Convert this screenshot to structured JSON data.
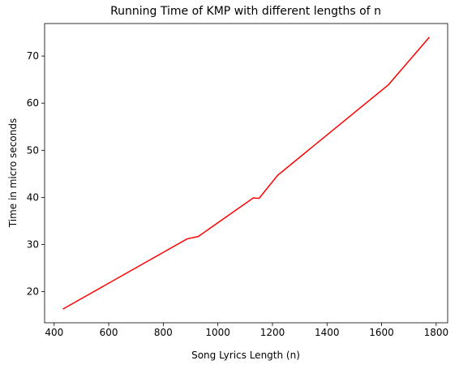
{
  "chart_data": {
    "type": "line",
    "title": "Running Time of KMP with different lengths of n",
    "xlabel": "Song Lyrics Length (n)",
    "ylabel": "Time in micro seconds",
    "x": [
      432,
      887,
      928,
      1130,
      1151,
      1219,
      1625,
      1775
    ],
    "series": [
      {
        "name": "KMP",
        "color": "#ff0000",
        "values": [
          16.3,
          31.2,
          31.7,
          39.9,
          39.8,
          44.7,
          63.9,
          74.0
        ]
      }
    ],
    "xlim": [
      365,
      1842
    ],
    "xticks": [
      400,
      600,
      800,
      1000,
      1200,
      1400,
      1600,
      1800
    ],
    "ylim": [
      13.4,
      76.9
    ],
    "yticks": [
      20,
      30,
      40,
      50,
      60,
      70
    ]
  }
}
